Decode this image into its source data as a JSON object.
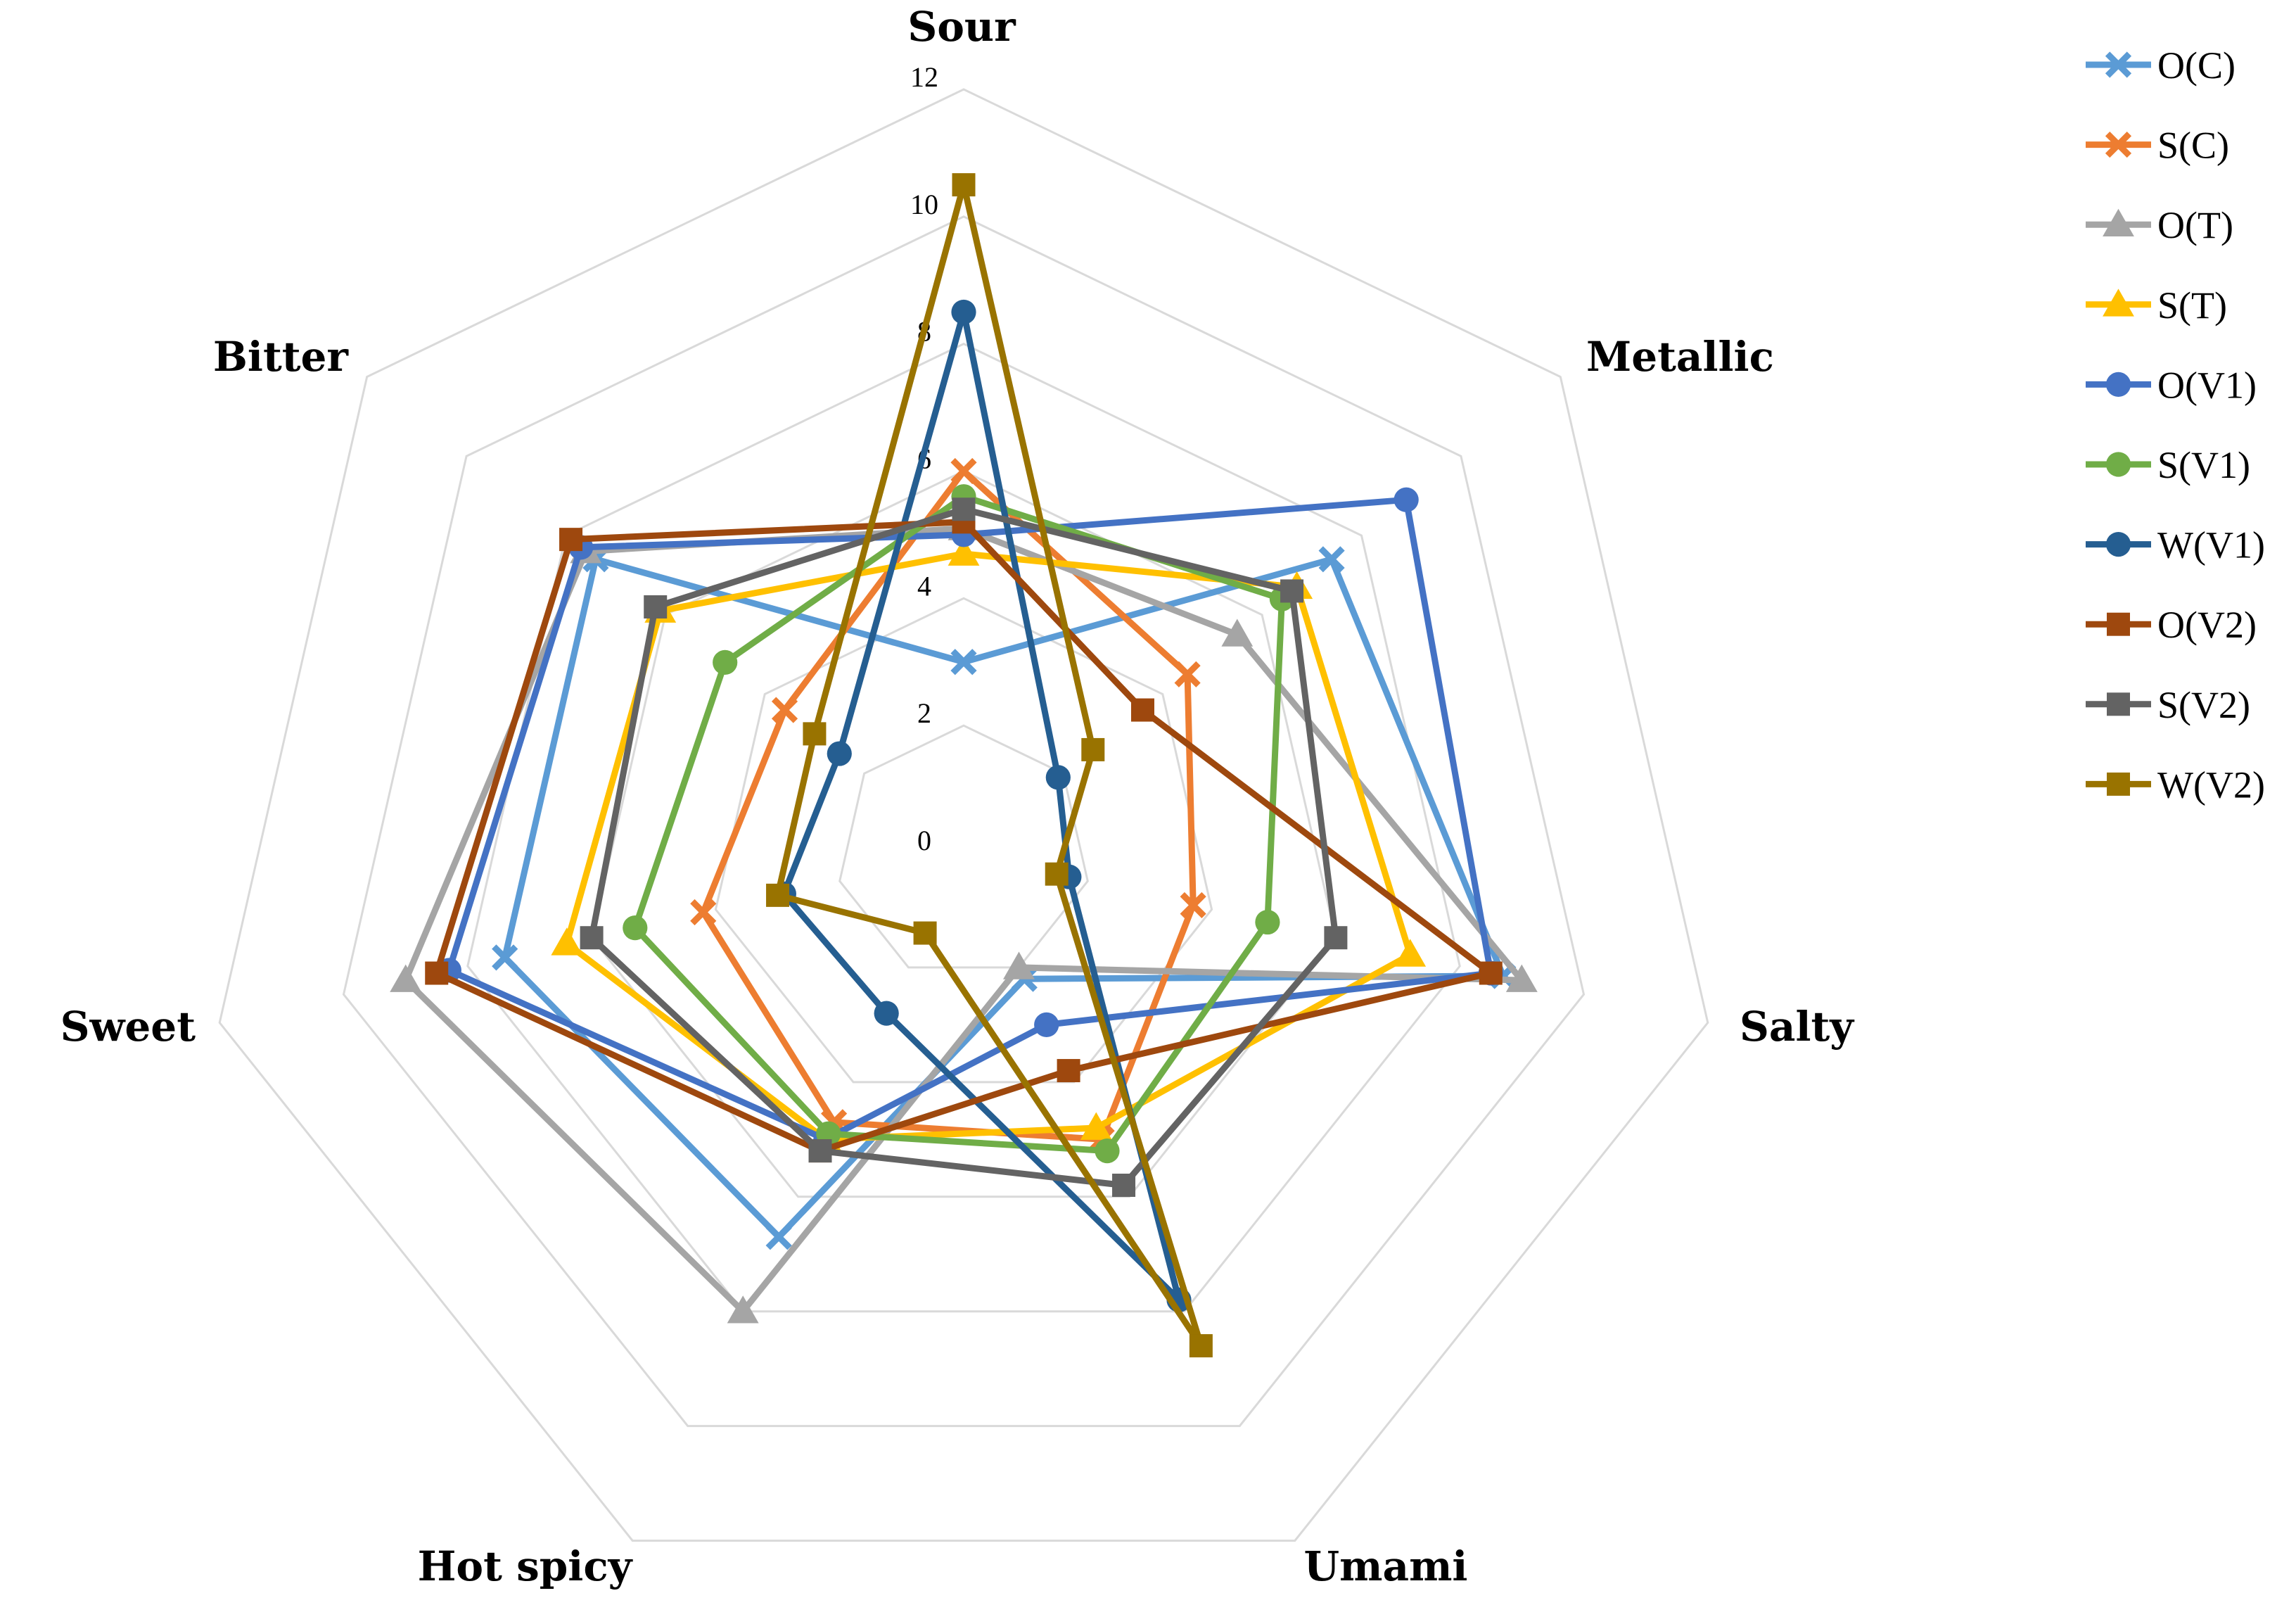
{
  "chart_data": {
    "type": "radar",
    "axes": [
      "Sour",
      "Metallic",
      "Salty",
      "Umami",
      "Hot spicy",
      "Sweet",
      "Bitter"
    ],
    "rlim": [
      0,
      12
    ],
    "ticks": [
      "0",
      "2",
      "4",
      "6",
      "8",
      "10",
      "12"
    ],
    "grid": true,
    "legend_position": "right",
    "series": [
      {
        "name": "O(C)",
        "color": "#5b9bd5",
        "marker": "x",
        "values": [
          3.0,
          7.4,
          8.7,
          2.2,
          6.7,
          7.4,
          7.4
        ]
      },
      {
        "name": "S(C)",
        "color": "#ed7d31",
        "marker": "x",
        "values": [
          6.0,
          4.5,
          3.7,
          5.0,
          4.7,
          4.2,
          3.6
        ]
      },
      {
        "name": "O(T)",
        "color": "#a5a5a5",
        "marker": "triangle",
        "values": [
          5.1,
          5.5,
          9.0,
          2.0,
          8.0,
          9.0,
          7.6
        ]
      },
      {
        "name": "S(T)",
        "color": "#ffc000",
        "marker": "triangle",
        "values": [
          4.7,
          6.7,
          7.2,
          4.8,
          5.0,
          6.4,
          6.1
        ]
      },
      {
        "name": "O(V1)",
        "color": "#4472c4",
        "marker": "circle",
        "values": [
          5.0,
          8.9,
          8.5,
          3.0,
          5.0,
          8.3,
          7.7
        ]
      },
      {
        "name": "S(V1)",
        "color": "#70ad47",
        "marker": "circle",
        "values": [
          5.6,
          6.4,
          4.9,
          5.2,
          4.9,
          5.3,
          4.8
        ]
      },
      {
        "name": "W(V1)",
        "color": "#255e91",
        "marker": "circle",
        "values": [
          8.5,
          1.9,
          1.7,
          7.8,
          2.8,
          2.9,
          2.5
        ]
      },
      {
        "name": "O(V2)",
        "color": "#9e480e",
        "marker": "square",
        "values": [
          5.2,
          3.6,
          8.5,
          3.8,
          5.2,
          8.5,
          7.9
        ]
      },
      {
        "name": "S(V2)",
        "color": "#636363",
        "marker": "square",
        "values": [
          5.4,
          6.6,
          6.0,
          5.8,
          5.2,
          6.0,
          6.2
        ]
      },
      {
        "name": "W(V2)",
        "color": "#997300",
        "marker": "square",
        "values": [
          10.5,
          2.6,
          1.5,
          8.6,
          1.4,
          3.0,
          3.0
        ]
      }
    ]
  }
}
